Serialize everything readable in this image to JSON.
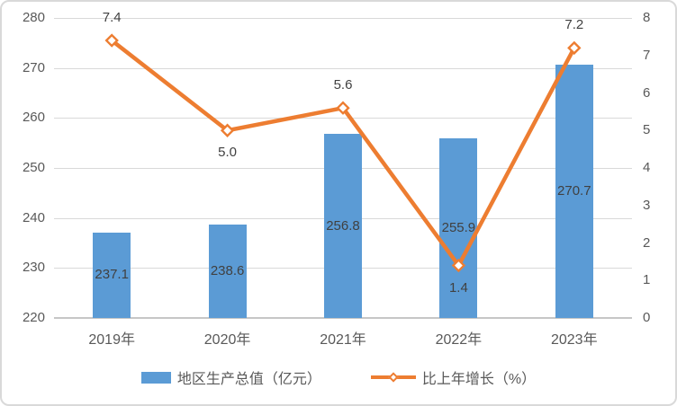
{
  "chart_data": {
    "type": "combo",
    "categories": [
      "2019年",
      "2020年",
      "2021年",
      "2022年",
      "2023年"
    ],
    "series": [
      {
        "name": "地区生产总值（亿元）",
        "type": "bar",
        "axis": "left",
        "values": [
          237.1,
          238.6,
          256.8,
          255.9,
          270.7
        ],
        "labels": [
          "237.1",
          "238.6",
          "256.8",
          "255.9",
          "270.7"
        ],
        "color": "#5B9BD5"
      },
      {
        "name": "比上年增长（%）",
        "type": "line",
        "axis": "right",
        "values": [
          7.4,
          5.0,
          5.6,
          1.4,
          7.2
        ],
        "labels": [
          "7.4",
          "5.0",
          "5.6",
          "1.4",
          "7.2"
        ],
        "label_positions": [
          "above",
          "below",
          "above",
          "below",
          "above"
        ],
        "marker": "open-diamond",
        "color": "#ED7D31"
      }
    ],
    "left_axis": {
      "min": 220,
      "max": 280,
      "step": 10,
      "ticks": [
        "220",
        "230",
        "240",
        "250",
        "260",
        "270",
        "280"
      ]
    },
    "right_axis": {
      "min": 0,
      "max": 8,
      "step": 1,
      "ticks": [
        "0",
        "1",
        "2",
        "3",
        "4",
        "5",
        "6",
        "7",
        "8"
      ]
    },
    "grid": true,
    "legend_position": "bottom",
    "title": ""
  },
  "colors": {
    "bar": "#5B9BD5",
    "line": "#ED7D31",
    "grid": "#D9D9D9",
    "axis_line": "#C6C6C6",
    "tick_text": "#595959",
    "data_label": "#404040",
    "frame_border": "#D9D9D9",
    "background": "#FFFFFF"
  }
}
